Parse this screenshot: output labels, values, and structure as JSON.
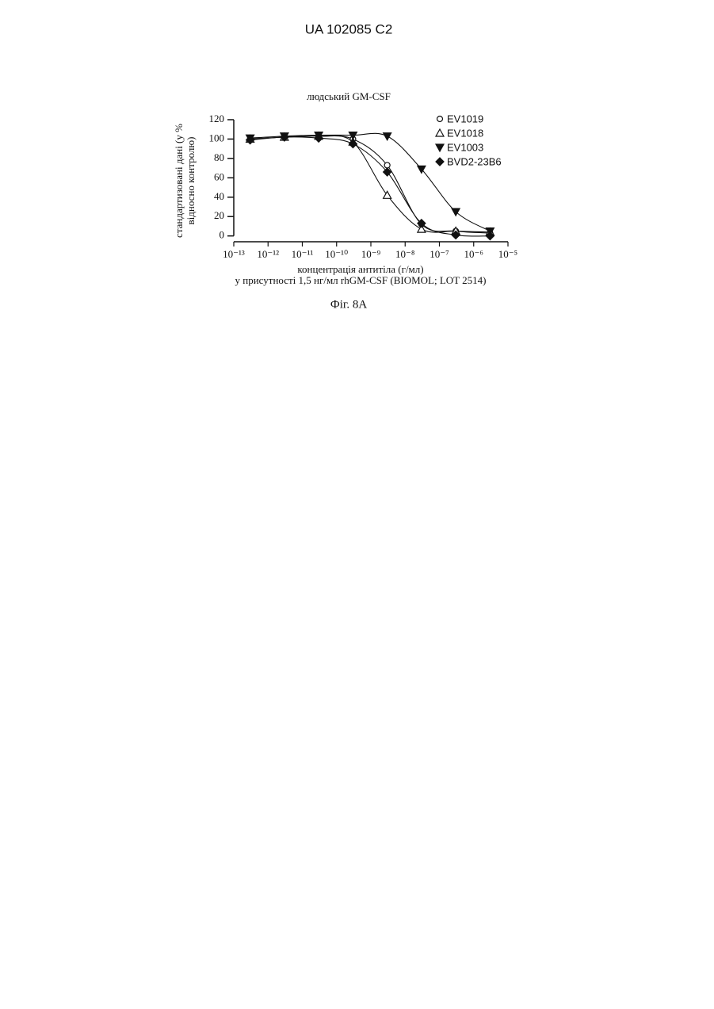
{
  "header": {
    "text": "UA 102085 C2"
  },
  "chart_data": {
    "type": "line",
    "title": "людський GM-CSF",
    "x_label": "концентрація антитіла (г/мл)",
    "y_label": [
      "стандартизовані дані (у %",
      "відносно контролю)"
    ],
    "note": "у присутності 1,5 нг/мл rhGM-CSF (BIOMOL; LOT 2514)",
    "log_x": true,
    "x": [
      3e-13,
      3e-12,
      3e-11,
      3e-10,
      3e-09,
      3e-08,
      3e-07,
      3e-06
    ],
    "series": [
      {
        "name": "EV1019",
        "marker": "circle",
        "color": "#111",
        "values": [
          100,
          102,
          103,
          100,
          73,
          12,
          5,
          3
        ]
      },
      {
        "name": "EV1018",
        "marker": "triangle-up",
        "color": "#111",
        "values": [
          100,
          102,
          103,
          97,
          42,
          7,
          5,
          4
        ]
      },
      {
        "name": "EV1003",
        "marker": "triangle-down",
        "color": "#111",
        "values": [
          101,
          103,
          104,
          104,
          103,
          69,
          25,
          5
        ]
      },
      {
        "name": "BVD2-23B6",
        "marker": "diamond",
        "color": "#111",
        "values": [
          99,
          102,
          101,
          95,
          66,
          13,
          1,
          0
        ]
      }
    ],
    "xlim": [
      1e-13,
      1e-05
    ],
    "xticks": [
      {
        "value": 1e-13,
        "label": "10⁻¹³"
      },
      {
        "value": 1e-12,
        "label": "10⁻¹²"
      },
      {
        "value": 1e-11,
        "label": "10⁻¹¹"
      },
      {
        "value": 1e-10,
        "label": "10⁻¹⁰"
      },
      {
        "value": 1e-09,
        "label": "10⁻⁹"
      },
      {
        "value": 1e-08,
        "label": "10⁻⁸"
      },
      {
        "value": 1e-07,
        "label": "10⁻⁷"
      },
      {
        "value": 1e-06,
        "label": "10⁻⁶"
      },
      {
        "value": 1e-05,
        "label": "10⁻⁵"
      }
    ],
    "ylim": [
      -6,
      120
    ],
    "yticks": [
      0,
      20,
      40,
      60,
      80,
      100,
      120
    ],
    "legend": "top-right"
  },
  "caption": "Фіг. 8A"
}
